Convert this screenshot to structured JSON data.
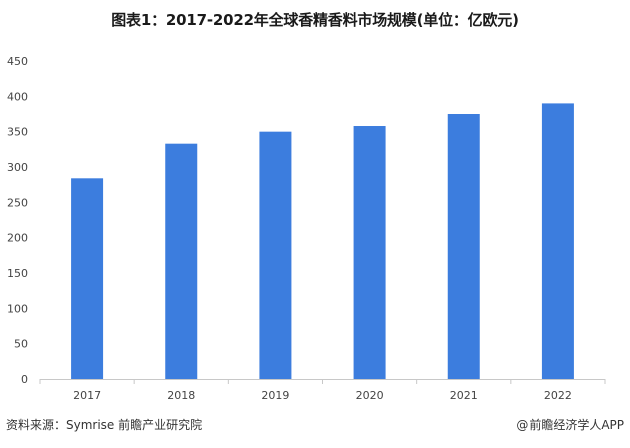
{
  "chart_data": {
    "type": "bar",
    "title": "图表1：2017-2022年全球香精香料市场规模(单位：亿欧元)",
    "categories": [
      "2017",
      "2018",
      "2019",
      "2020",
      "2021",
      "2022"
    ],
    "values": [
      284,
      333,
      350,
      358,
      375,
      390
    ],
    "ylim": [
      0,
      450
    ],
    "yticks": [
      0,
      50,
      100,
      150,
      200,
      250,
      300,
      350,
      400,
      450
    ],
    "xlabel": "",
    "ylabel": "",
    "grid": false,
    "bar_color": "#3c7dde"
  },
  "footer": {
    "source": "资料来源：Symrise 前瞻产业研究院",
    "brand": "前瞻经济学人APP",
    "brand_icon": "at-icon"
  }
}
